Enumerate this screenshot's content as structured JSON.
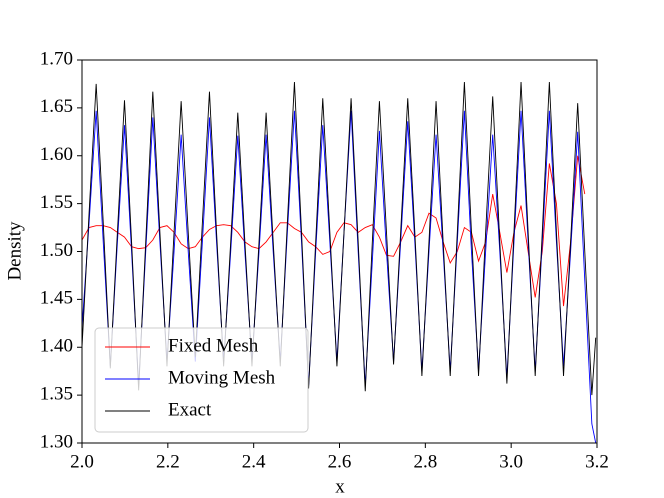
{
  "chart_data": {
    "type": "line",
    "xlabel": "x",
    "ylabel": "Density",
    "x": [
      2.0,
      2.0165,
      2.033,
      2.0495,
      2.066,
      2.0825,
      2.099,
      2.1155,
      2.132,
      2.1485,
      2.165,
      2.1815,
      2.198,
      2.2145,
      2.231,
      2.2475,
      2.264,
      2.2805,
      2.297,
      2.3135,
      2.33,
      2.3465,
      2.363,
      2.3795,
      2.396,
      2.4125,
      2.429,
      2.4455,
      2.462,
      2.4785,
      2.495,
      2.5115,
      2.528,
      2.5445,
      2.561,
      2.5775,
      2.594,
      2.6105,
      2.627,
      2.6435,
      2.66,
      2.6765,
      2.693,
      2.7095,
      2.726,
      2.7425,
      2.759,
      2.7755,
      2.792,
      2.8085,
      2.825,
      2.8415,
      2.858,
      2.8745,
      2.891,
      2.9075,
      2.924,
      2.9405,
      2.957,
      2.9735,
      2.99,
      3.0065,
      3.023,
      3.0395,
      3.056,
      3.0725,
      3.089,
      3.1055,
      3.122,
      3.1385,
      3.155,
      3.1715,
      3.188,
      3.197
    ],
    "series": [
      {
        "name": "Fixed Mesh",
        "color": "#ff0000",
        "values": [
          1.512,
          1.525,
          1.527,
          1.527,
          1.525,
          1.52,
          1.515,
          1.505,
          1.503,
          1.504,
          1.512,
          1.525,
          1.527,
          1.52,
          1.508,
          1.503,
          1.505,
          1.515,
          1.523,
          1.527,
          1.528,
          1.527,
          1.52,
          1.51,
          1.505,
          1.503,
          1.51,
          1.52,
          1.53,
          1.53,
          1.524,
          1.52,
          1.51,
          1.505,
          1.497,
          1.5,
          1.52,
          1.53,
          1.528,
          1.52,
          1.525,
          1.528,
          1.515,
          1.496,
          1.495,
          1.51,
          1.527,
          1.515,
          1.52,
          1.54,
          1.535,
          1.51,
          1.488,
          1.5,
          1.525,
          1.52,
          1.49,
          1.51,
          1.56,
          1.52,
          1.478,
          1.52,
          1.548,
          1.5,
          1.452,
          1.5,
          1.592,
          1.55,
          1.443,
          1.51,
          1.6,
          1.56,
          null,
          null
        ]
      },
      {
        "name": "Moving Mesh",
        "color": "#0000ff",
        "values": [
          1.42,
          1.53,
          1.647,
          1.51,
          1.38,
          1.51,
          1.632,
          1.5,
          1.36,
          1.5,
          1.64,
          1.51,
          1.385,
          1.5,
          1.622,
          1.5,
          1.385,
          1.51,
          1.64,
          1.51,
          1.385,
          1.5,
          1.621,
          1.5,
          1.385,
          1.5,
          1.622,
          1.5,
          1.385,
          1.52,
          1.647,
          1.51,
          1.36,
          1.5,
          1.632,
          1.51,
          1.385,
          1.52,
          1.647,
          1.5,
          1.36,
          1.49,
          1.626,
          1.5,
          1.385,
          1.51,
          1.636,
          1.51,
          1.375,
          1.5,
          1.622,
          1.5,
          1.375,
          1.51,
          1.647,
          1.5,
          1.375,
          1.5,
          1.622,
          1.5,
          1.368,
          1.51,
          1.647,
          1.51,
          1.375,
          1.51,
          1.647,
          1.51,
          1.38,
          1.5,
          1.625,
          1.47,
          1.32,
          1.3
        ]
      },
      {
        "name": "Exact",
        "color": "#000000",
        "values": [
          1.4,
          1.54,
          1.675,
          1.53,
          1.378,
          1.52,
          1.658,
          1.51,
          1.355,
          1.51,
          1.667,
          1.52,
          1.38,
          1.52,
          1.657,
          1.52,
          1.39,
          1.53,
          1.667,
          1.52,
          1.38,
          1.51,
          1.645,
          1.51,
          1.38,
          1.51,
          1.645,
          1.51,
          1.38,
          1.53,
          1.677,
          1.52,
          1.357,
          1.51,
          1.66,
          1.52,
          1.38,
          1.52,
          1.66,
          1.51,
          1.354,
          1.51,
          1.657,
          1.52,
          1.382,
          1.52,
          1.66,
          1.52,
          1.37,
          1.51,
          1.657,
          1.51,
          1.37,
          1.52,
          1.677,
          1.52,
          1.37,
          1.52,
          1.662,
          1.51,
          1.362,
          1.52,
          1.677,
          1.52,
          1.37,
          1.52,
          1.677,
          1.52,
          1.37,
          1.51,
          1.655,
          1.5,
          1.35,
          1.41
        ]
      }
    ],
    "xlim": [
      2.0,
      3.2
    ],
    "xticks": [
      {
        "value": 2.0,
        "label": "2.0"
      },
      2.2,
      2.4,
      2.6,
      2.8,
      {
        "value": 3.0,
        "label": "3.0"
      },
      3.2
    ],
    "ylim": [
      1.3,
      1.7
    ],
    "yticks": [
      {
        "value": 1.3,
        "label": "1.30"
      },
      1.35,
      {
        "value": 1.4,
        "label": "1.40"
      },
      1.45,
      {
        "value": 1.5,
        "label": "1.50"
      },
      1.55,
      {
        "value": 1.6,
        "label": "1.60"
      },
      1.65,
      {
        "value": 1.7,
        "label": "1.70"
      }
    ],
    "legend": "lower left"
  }
}
